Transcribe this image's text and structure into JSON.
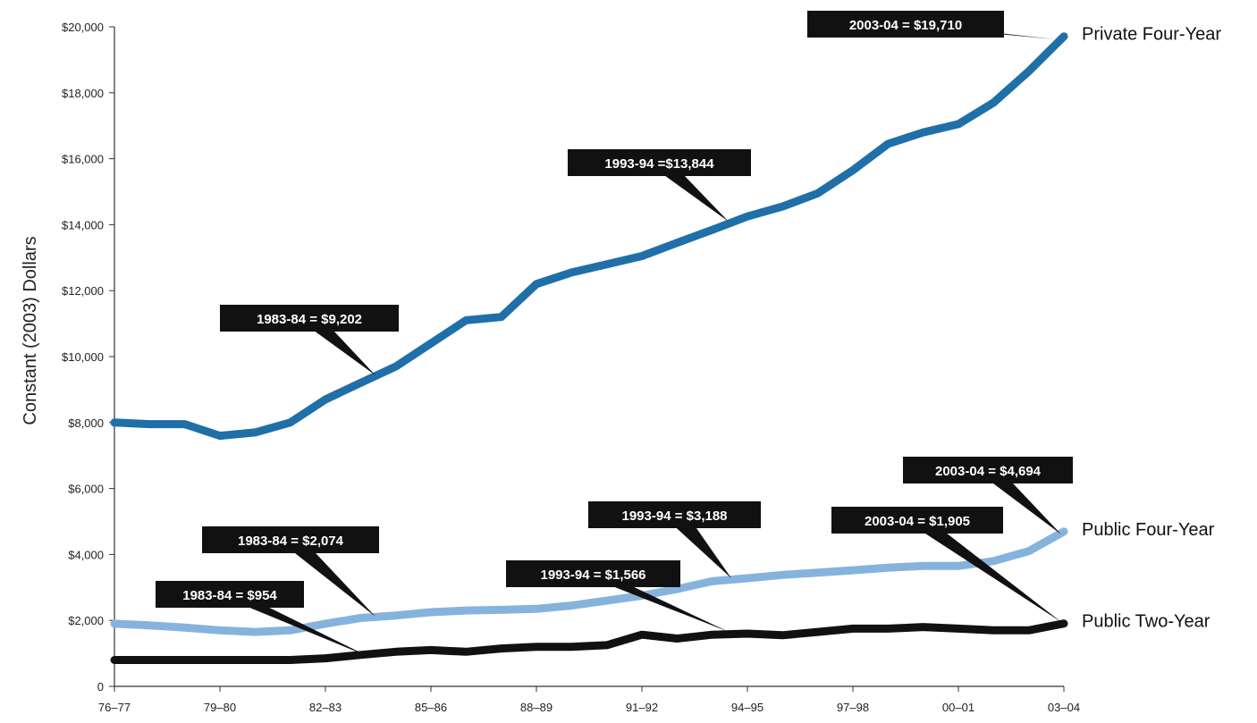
{
  "chart_data": {
    "type": "line",
    "title": "",
    "ylabel": "Constant (2003) Dollars",
    "xlabel": "",
    "ylim": [
      0,
      20000
    ],
    "yticks": [
      0,
      2000,
      4000,
      6000,
      8000,
      10000,
      12000,
      14000,
      16000,
      18000,
      20000
    ],
    "ytick_labels": [
      "0",
      "$2,000",
      "$4,000",
      "$6,000",
      "$8,000",
      "$10,000",
      "$12,000",
      "$14,000",
      "$16,000",
      "$18,000",
      "$20,000"
    ],
    "x": [
      "76–77",
      "77–78",
      "78–79",
      "79–80",
      "80–81",
      "81–82",
      "82–83",
      "83–84",
      "84–85",
      "85–86",
      "86–87",
      "87–88",
      "88–89",
      "89–90",
      "90–91",
      "91–92",
      "92–93",
      "93–94",
      "94–95",
      "95–96",
      "96–97",
      "97–98",
      "98–99",
      "99–00",
      "00–01",
      "01–02",
      "02–03",
      "03–04"
    ],
    "xtick_labels": [
      "76–77",
      "79–80",
      "82–83",
      "85–86",
      "88–89",
      "91–92",
      "94–95",
      "97–98",
      "00–01",
      "03–04"
    ],
    "xtick_index": [
      0,
      3,
      6,
      9,
      12,
      15,
      18,
      21,
      24,
      27
    ],
    "series": [
      {
        "name": "Private Four-Year",
        "color": "#1f6fa9",
        "values": [
          8000,
          7950,
          7950,
          7600,
          7700,
          8000,
          8700,
          9202,
          9700,
          10400,
          11100,
          11200,
          12200,
          12550,
          12800,
          13050,
          13450,
          13844,
          14250,
          14550,
          14950,
          15650,
          16450,
          16800,
          17050,
          17700,
          18650,
          19710
        ]
      },
      {
        "name": "Public Four-Year",
        "color": "#86b3dd",
        "values": [
          1900,
          1850,
          1780,
          1700,
          1650,
          1700,
          1900,
          2074,
          2150,
          2250,
          2300,
          2320,
          2350,
          2450,
          2600,
          2750,
          2950,
          3188,
          3280,
          3380,
          3450,
          3520,
          3600,
          3650,
          3650,
          3800,
          4100,
          4694
        ]
      },
      {
        "name": "Public Two-Year",
        "color": "#111111",
        "values": [
          800,
          800,
          800,
          800,
          800,
          800,
          850,
          954,
          1050,
          1100,
          1050,
          1150,
          1200,
          1200,
          1250,
          1566,
          1450,
          1566,
          1600,
          1550,
          1650,
          1750,
          1750,
          1800,
          1750,
          1700,
          1700,
          1905
        ]
      }
    ],
    "annotations": [
      {
        "text": "2003-04 = $19,710",
        "series": 0,
        "index": 27
      },
      {
        "text": "1993-94 =$13,844",
        "series": 0,
        "index": 17
      },
      {
        "text": "1983-84 = $9,202",
        "series": 0,
        "index": 7
      },
      {
        "text": "2003-04 = $4,694",
        "series": 1,
        "index": 27
      },
      {
        "text": "1993-94 = $3,188",
        "series": 1,
        "index": 17
      },
      {
        "text": "1983-84 = $2,074",
        "series": 1,
        "index": 7
      },
      {
        "text": "2003-04 = $1,905",
        "series": 2,
        "index": 27
      },
      {
        "text": "1993-94 = $1,566",
        "series": 2,
        "index": 17
      },
      {
        "text": "1983-84 = $954",
        "series": 2,
        "index": 7
      }
    ],
    "grid": false,
    "legend": "series labels at right end of lines"
  }
}
